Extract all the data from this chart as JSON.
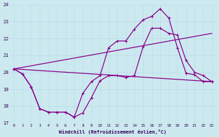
{
  "xlabel": "Windchill (Refroidissement éolien,°C)",
  "xlim": [
    -0.5,
    23.5
  ],
  "ylim": [
    17,
    24
  ],
  "yticks": [
    17,
    18,
    19,
    20,
    21,
    22,
    23,
    24
  ],
  "xticks": [
    0,
    1,
    2,
    3,
    4,
    5,
    6,
    7,
    8,
    9,
    10,
    11,
    12,
    13,
    14,
    15,
    16,
    17,
    18,
    19,
    20,
    21,
    22,
    23
  ],
  "bg_color": "#cce9f0",
  "line_color": "#880088",
  "grid_color": "#aaddee",
  "line1_x": [
    0,
    1,
    2,
    3,
    4,
    5,
    6,
    7,
    8,
    9,
    10,
    11,
    12,
    13,
    14,
    15,
    16,
    17,
    18,
    19,
    20,
    21,
    22,
    23
  ],
  "line1_y": [
    20.2,
    19.9,
    19.15,
    17.85,
    17.65,
    17.65,
    17.65,
    17.35,
    18.75,
    19.45,
    19.8,
    21.45,
    21.85,
    21.85,
    22.55,
    23.1,
    23.3,
    23.75,
    23.2,
    21.45,
    19.95,
    19.85,
    19.45,
    19.45
  ],
  "line2_x": [
    0,
    1,
    2,
    3,
    4,
    5,
    6,
    7,
    8,
    9,
    10,
    11,
    12,
    13,
    14,
    15,
    16,
    17,
    18,
    19,
    20,
    21,
    22,
    23
  ],
  "line2_y": [
    20.2,
    19.9,
    19.15,
    17.85,
    17.65,
    17.65,
    17.65,
    17.35,
    17.6,
    18.5,
    19.5,
    19.8,
    19.8,
    19.7,
    19.8,
    21.5,
    22.6,
    22.6,
    22.3,
    22.2,
    20.7,
    20.0,
    19.8,
    19.45
  ],
  "line3_x": [
    0,
    23
  ],
  "line3_y": [
    20.2,
    22.3
  ],
  "line4_x": [
    0,
    23
  ],
  "line4_y": [
    20.2,
    19.45
  ]
}
